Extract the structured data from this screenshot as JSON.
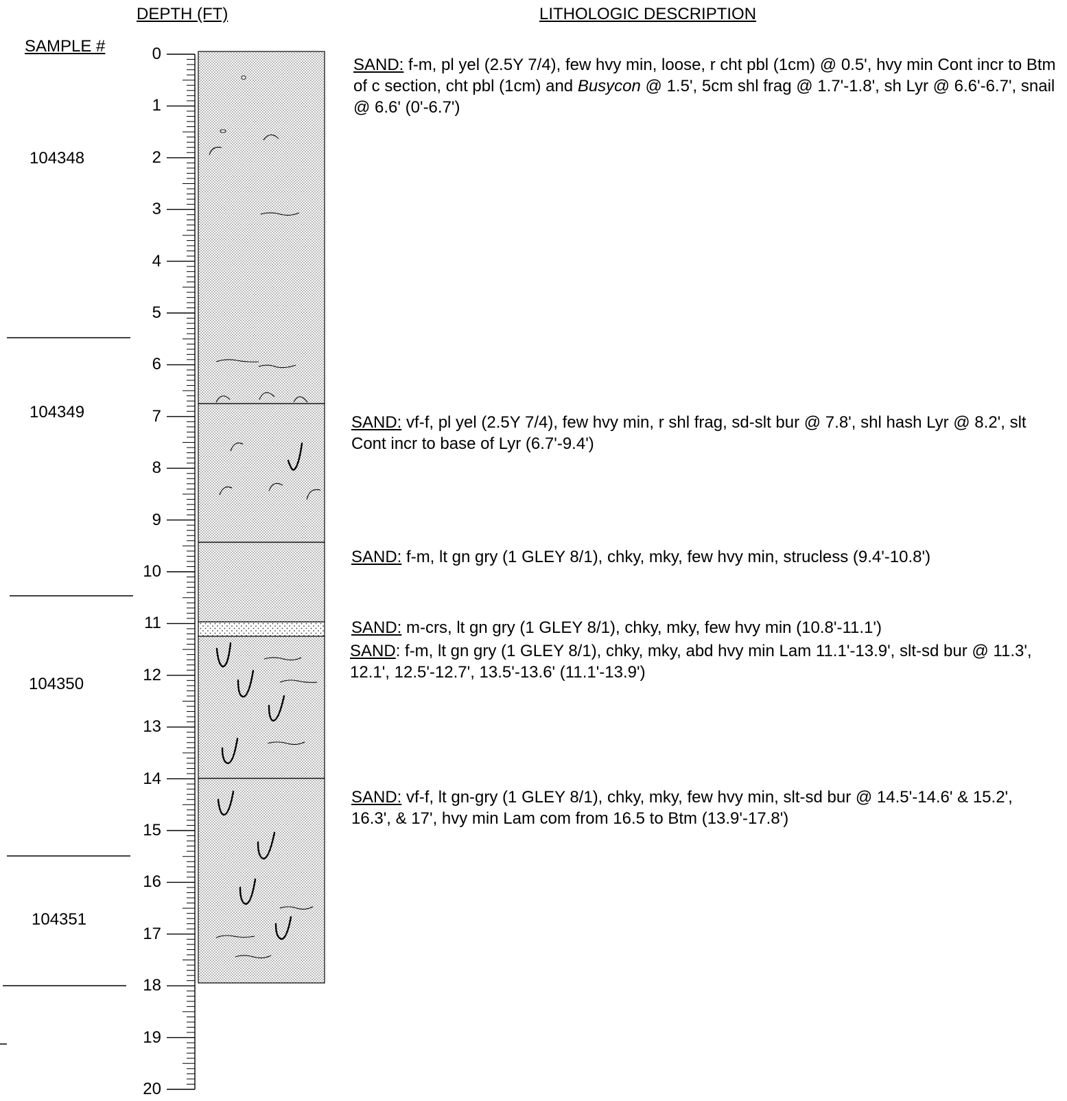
{
  "headers": {
    "depth": "DEPTH (FT)",
    "description": "LITHOLOGIC DESCRIPTION",
    "sample": "SAMPLE #"
  },
  "samples": [
    "104348",
    "104349",
    "104350",
    "104351"
  ],
  "depth_labels": [
    "0",
    "1",
    "2",
    "3",
    "4",
    "5",
    "6",
    "7",
    "8",
    "9",
    "10",
    "11",
    "12",
    "13",
    "14",
    "15",
    "16",
    "17",
    "18",
    "19",
    "20"
  ],
  "units": [
    {
      "label": "SAND:",
      "text_a": " f-m, pl yel (2.5Y 7/4), few hvy min, loose, r cht pbl (1cm) @ 0.5', hvy min Cont incr to Btm of c section, cht pbl (1cm) and ",
      "italic": "Busycon",
      "text_b": " @ 1.5', 5cm shl frag @ 1.7'-1.8', sh Lyr @ 6.6'-6.7', snail @ 6.6' (0'-6.7')"
    },
    {
      "label": "SAND:",
      "text_a": " vf-f, pl yel (2.5Y 7/4), few hvy min, r shl frag, sd-slt bur @ 7.8', shl hash Lyr @ 8.2', slt Cont incr to base of Lyr (6.7'-9.4')"
    },
    {
      "label": "SAND:",
      "text_a": " f-m, lt gn gry (1 GLEY 8/1), chky, mky, few hvy min, strucless (9.4'-10.8')"
    },
    {
      "label": "SAND:",
      "text_a": " m-crs, lt gn gry (1 GLEY 8/1), chky, mky, few hvy min (10.8'-11.1')"
    },
    {
      "label": "SAND",
      "text_a": ": f-m, lt gn gry (1 GLEY 8/1), chky, mky, abd hvy min Lam 11.1'-13.9', slt-sd bur @ 11.3', 12.1', 12.5'-12.7', 13.5'-13.6' (11.1'-13.9')"
    },
    {
      "label": "SAND:",
      "text_a": " vf-f, lt gn-gry (1 GLEY 8/1), chky, mky, few hvy min, slt-sd bur @ 14.5'-14.6' & 15.2', 16.3', & 17', hvy min Lam com from 16.5 to Btm (13.9'-17.8')"
    }
  ],
  "boundaries_ft": [
    6.7,
    9.4,
    10.8,
    11.1,
    13.9
  ],
  "column_bottom_ft": 17.8,
  "axis_max_ft": 20
}
